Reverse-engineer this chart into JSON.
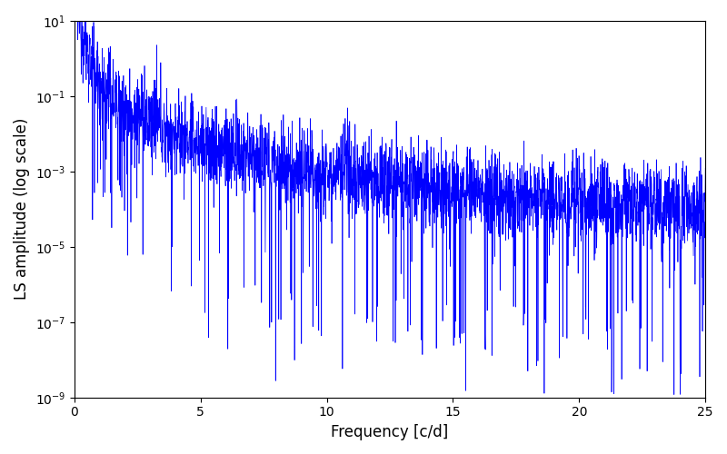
{
  "xlabel": "Frequency [c/d]",
  "ylabel": "LS amplitude (log scale)",
  "xlim": [
    0,
    25
  ],
  "ylim_log_min": -9,
  "ylim_log_max": 1,
  "line_color": "#0000ff",
  "line_width": 0.5,
  "background_color": "#ffffff",
  "figsize": [
    8.0,
    5.0
  ],
  "dpi": 100,
  "seed": 12345,
  "n_points": 3000,
  "freq_max": 25.0
}
